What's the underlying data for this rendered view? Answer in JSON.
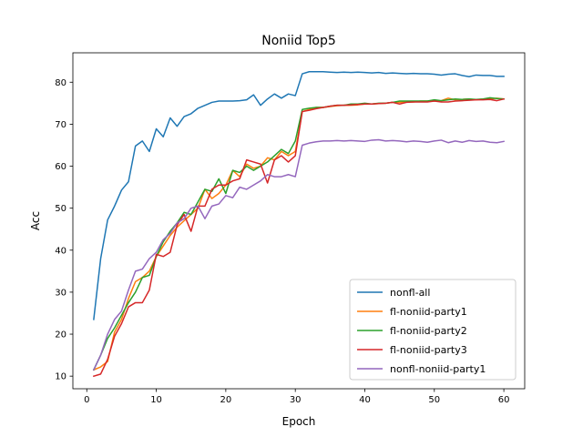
{
  "chart_data": {
    "type": "line",
    "title": "Noniid Top5",
    "xlabel": "Epoch",
    "ylabel": "Acc",
    "xlim": [
      -2,
      63
    ],
    "ylim": [
      7,
      87
    ],
    "xticks": [
      0,
      10,
      20,
      30,
      40,
      50,
      60
    ],
    "yticks": [
      10,
      20,
      30,
      40,
      50,
      60,
      70,
      80
    ],
    "grid": false,
    "legend_position": "lower-right",
    "x": [
      1,
      2,
      3,
      4,
      5,
      6,
      7,
      8,
      9,
      10,
      11,
      12,
      13,
      14,
      15,
      16,
      17,
      18,
      19,
      20,
      21,
      22,
      23,
      24,
      25,
      26,
      27,
      28,
      29,
      30,
      31,
      32,
      33,
      34,
      35,
      36,
      37,
      38,
      39,
      40,
      41,
      42,
      43,
      44,
      45,
      46,
      47,
      48,
      49,
      50,
      51,
      52,
      53,
      54,
      55,
      56,
      57,
      58,
      59,
      60
    ],
    "series": [
      {
        "name": "nonfl-all",
        "color": "#1f77b4",
        "values": [
          23.5,
          38.0,
          47.2,
          50.5,
          54.3,
          56.3,
          64.8,
          66.0,
          63.5,
          68.9,
          67.0,
          71.5,
          69.5,
          71.8,
          72.5,
          73.8,
          74.5,
          75.2,
          75.5,
          75.5,
          75.5,
          75.6,
          75.8,
          77.0,
          74.5,
          76.0,
          77.2,
          76.2,
          77.2,
          76.8,
          82.0,
          82.5,
          82.5,
          82.5,
          82.4,
          82.3,
          82.4,
          82.3,
          82.4,
          82.3,
          82.2,
          82.3,
          82.1,
          82.2,
          82.1,
          82.0,
          82.1,
          82.0,
          82.0,
          81.9,
          81.7,
          81.9,
          82.0,
          81.6,
          81.3,
          81.7,
          81.6,
          81.6,
          81.4,
          81.4
        ]
      },
      {
        "name": "fl-noniid-party1",
        "color": "#ff7f0e",
        "values": [
          11.5,
          12.2,
          13.5,
          20.5,
          23.5,
          28.5,
          32.5,
          33.5,
          35.0,
          38.5,
          41.0,
          43.5,
          45.5,
          47.0,
          48.5,
          50.0,
          54.5,
          52.3,
          53.5,
          55.5,
          59.0,
          57.5,
          60.5,
          59.5,
          60.0,
          62.0,
          61.5,
          63.5,
          62.5,
          63.5,
          73.0,
          73.5,
          74.0,
          74.0,
          74.2,
          74.4,
          74.5,
          74.5,
          74.6,
          74.8,
          74.8,
          74.9,
          75.0,
          75.2,
          75.2,
          75.3,
          75.3,
          75.5,
          75.5,
          75.5,
          75.6,
          76.2,
          75.8,
          75.9,
          76.0,
          75.8,
          76.0,
          76.0,
          76.2,
          76.0
        ]
      },
      {
        "name": "fl-noniid-party2",
        "color": "#2ca02c",
        "values": [
          11.5,
          15.0,
          19.0,
          21.5,
          24.5,
          27.5,
          30.0,
          33.5,
          34.0,
          38.5,
          42.0,
          44.5,
          46.5,
          49.0,
          48.5,
          51.5,
          54.5,
          54.0,
          57.0,
          53.5,
          59.0,
          58.5,
          60.0,
          59.0,
          60.0,
          61.0,
          62.5,
          64.0,
          63.0,
          66.0,
          73.5,
          73.8,
          74.0,
          74.0,
          74.3,
          74.5,
          74.5,
          74.8,
          74.8,
          75.0,
          74.8,
          75.0,
          75.0,
          75.2,
          75.5,
          75.5,
          75.5,
          75.5,
          75.5,
          75.8,
          75.6,
          75.8,
          76.0,
          75.9,
          76.0,
          75.9,
          76.0,
          76.3,
          76.1,
          76.0
        ]
      },
      {
        "name": "fl-noniid-party3",
        "color": "#d62728",
        "values": [
          10.0,
          10.5,
          14.0,
          19.5,
          22.5,
          26.5,
          27.5,
          27.5,
          30.5,
          39.0,
          38.5,
          39.5,
          46.0,
          48.5,
          44.5,
          50.5,
          50.5,
          54.5,
          55.5,
          55.5,
          56.5,
          57.0,
          61.5,
          61.0,
          60.5,
          56.0,
          61.5,
          62.5,
          61.0,
          62.5,
          73.0,
          73.3,
          73.7,
          74.0,
          74.3,
          74.5,
          74.5,
          74.6,
          74.7,
          74.8,
          74.8,
          74.9,
          75.0,
          75.2,
          74.8,
          75.2,
          75.3,
          75.3,
          75.3,
          75.5,
          75.3,
          75.3,
          75.5,
          75.6,
          75.7,
          75.8,
          75.8,
          75.9,
          75.6,
          76.0
        ]
      },
      {
        "name": "nonfl-noniid-party1",
        "color": "#9467bd",
        "values": [
          11.5,
          15.0,
          20.0,
          23.5,
          25.5,
          30.5,
          35.0,
          35.5,
          38.0,
          39.5,
          42.5,
          44.0,
          46.5,
          47.5,
          50.0,
          50.5,
          47.5,
          50.5,
          51.0,
          53.0,
          52.5,
          55.0,
          54.5,
          55.5,
          56.5,
          58.0,
          57.5,
          57.5,
          58.0,
          57.5,
          65.0,
          65.5,
          65.8,
          66.0,
          66.0,
          66.1,
          66.0,
          66.1,
          66.0,
          65.9,
          66.2,
          66.3,
          66.0,
          66.1,
          66.0,
          65.8,
          66.0,
          65.9,
          65.7,
          66.0,
          66.2,
          65.6,
          66.0,
          65.7,
          66.1,
          65.9,
          66.0,
          65.7,
          65.6,
          65.9
        ]
      }
    ]
  }
}
